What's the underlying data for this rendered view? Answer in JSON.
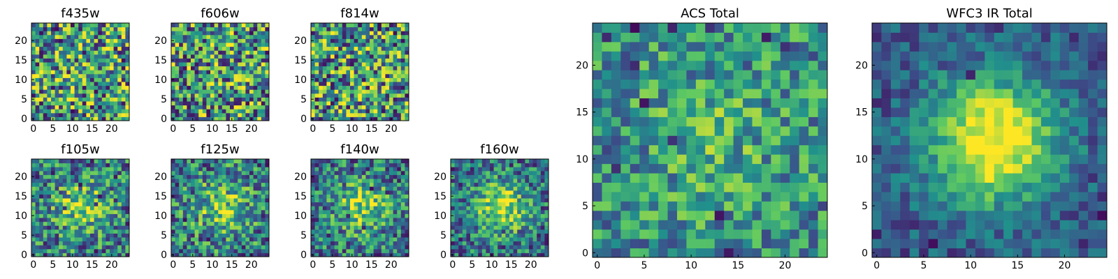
{
  "figure": {
    "description": "Grid of postage-stamp images per HST filter plus stacked totals",
    "colormap": "viridis",
    "cmap_colors": [
      "#440154",
      "#3b528b",
      "#21918c",
      "#5ec962",
      "#fde725"
    ]
  },
  "chart_data": [
    {
      "type": "heatmap",
      "title": "f435w",
      "grid_size": 25,
      "xticks": [
        0,
        5,
        10,
        15,
        20
      ],
      "yticks": [
        0,
        5,
        10,
        15,
        20
      ],
      "xlim": [
        0,
        24
      ],
      "ylim": [
        0,
        24
      ],
      "seed": 11,
      "blob": 0.05,
      "noise": 1.0,
      "dark_spots": 14
    },
    {
      "type": "heatmap",
      "title": "f606w",
      "grid_size": 25,
      "xticks": [
        0,
        5,
        10,
        15,
        20
      ],
      "yticks": [
        0,
        5,
        10,
        15,
        20
      ],
      "xlim": [
        0,
        24
      ],
      "ylim": [
        0,
        24
      ],
      "seed": 23,
      "blob": 0.05,
      "noise": 1.0,
      "dark_spots": 12
    },
    {
      "type": "heatmap",
      "title": "f814w",
      "grid_size": 25,
      "xticks": [
        0,
        5,
        10,
        15,
        20
      ],
      "yticks": [
        0,
        5,
        10,
        15,
        20
      ],
      "xlim": [
        0,
        24
      ],
      "ylim": [
        0,
        24
      ],
      "seed": 37,
      "blob": 0.05,
      "noise": 1.0,
      "dark_spots": 14
    },
    {
      "type": "heatmap",
      "title": "f105w",
      "grid_size": 25,
      "xticks": [
        0,
        5,
        10,
        15,
        20
      ],
      "yticks": [
        0,
        5,
        10,
        15,
        20
      ],
      "xlim": [
        0,
        24
      ],
      "ylim": [
        0,
        24
      ],
      "seed": 41,
      "blob": 0.35,
      "noise": 0.75,
      "dark_spots": 8
    },
    {
      "type": "heatmap",
      "title": "f125w",
      "grid_size": 25,
      "xticks": [
        0,
        5,
        10,
        15,
        20
      ],
      "yticks": [
        0,
        5,
        10,
        15,
        20
      ],
      "xlim": [
        0,
        24
      ],
      "ylim": [
        0,
        24
      ],
      "seed": 53,
      "blob": 0.35,
      "noise": 0.75,
      "dark_spots": 8
    },
    {
      "type": "heatmap",
      "title": "f140w",
      "grid_size": 25,
      "xticks": [
        0,
        5,
        10,
        15,
        20
      ],
      "yticks": [
        0,
        5,
        10,
        15,
        20
      ],
      "xlim": [
        0,
        24
      ],
      "ylim": [
        0,
        24
      ],
      "seed": 67,
      "blob": 0.4,
      "noise": 0.7,
      "dark_spots": 10
    },
    {
      "type": "heatmap",
      "title": "f160w",
      "grid_size": 25,
      "xticks": [
        0,
        5,
        10,
        15,
        20
      ],
      "yticks": [
        0,
        5,
        10,
        15,
        20
      ],
      "xlim": [
        0,
        24
      ],
      "ylim": [
        0,
        24
      ],
      "seed": 79,
      "blob": 0.5,
      "noise": 0.65,
      "dark_spots": 10
    },
    {
      "type": "heatmap",
      "title": "ACS Total",
      "grid_size": 25,
      "xticks": [
        0,
        5,
        10,
        15,
        20
      ],
      "yticks": [
        0,
        5,
        10,
        15,
        20
      ],
      "xlim": [
        0,
        24
      ],
      "ylim": [
        0,
        24
      ],
      "seed": 97,
      "blob": 0.15,
      "noise": 0.6,
      "dark_spots": 10
    },
    {
      "type": "heatmap",
      "title": "WFC3 IR Total",
      "grid_size": 25,
      "xticks": [
        0,
        5,
        10,
        15,
        20
      ],
      "yticks": [
        0,
        5,
        10,
        15,
        20
      ],
      "xlim": [
        0,
        24
      ],
      "ylim": [
        0,
        24
      ],
      "seed": 113,
      "blob": 0.8,
      "noise": 0.35,
      "dark_spots": 8
    }
  ]
}
